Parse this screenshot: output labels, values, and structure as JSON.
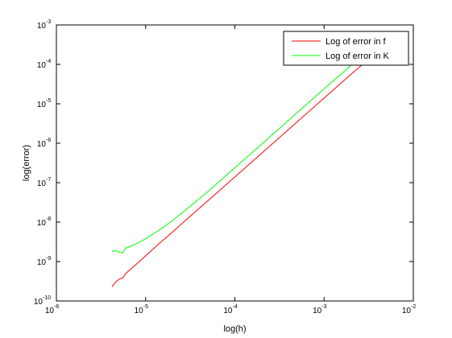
{
  "chart_data": {
    "type": "line",
    "title": "",
    "xlabel": "log(h)",
    "ylabel": "log(error)",
    "xscale": "log",
    "yscale": "log",
    "xlim": [
      1e-06,
      0.01
    ],
    "ylim": [
      1e-10,
      0.001
    ],
    "grid": false,
    "legend_position": "top-right",
    "x_ticks": [
      {
        "base": "10",
        "exp": "-6",
        "value": 1e-06
      },
      {
        "base": "10",
        "exp": "-5",
        "value": 1e-05
      },
      {
        "base": "10",
        "exp": "-4",
        "value": 0.0001
      },
      {
        "base": "10",
        "exp": "-3",
        "value": 0.001
      },
      {
        "base": "10",
        "exp": "-2",
        "value": 0.01
      }
    ],
    "y_ticks": [
      {
        "base": "10",
        "exp": "-10",
        "value": 1e-10
      },
      {
        "base": "10",
        "exp": "-9",
        "value": 1e-09
      },
      {
        "base": "10",
        "exp": "-8",
        "value": 1e-08
      },
      {
        "base": "10",
        "exp": "-7",
        "value": 1e-07
      },
      {
        "base": "10",
        "exp": "-6",
        "value": 1e-06
      },
      {
        "base": "10",
        "exp": "-5",
        "value": 1e-05
      },
      {
        "base": "10",
        "exp": "-4",
        "value": 0.0001
      },
      {
        "base": "10",
        "exp": "-3",
        "value": 0.001
      }
    ],
    "series": [
      {
        "name": "Log of error in f",
        "color": "#ff0000",
        "points": [
          [
            4.2e-06,
            2.3e-10
          ],
          [
            4.6e-06,
            3e-10
          ],
          [
            5e-06,
            3.5e-10
          ],
          [
            5.5e-06,
            3.8e-10
          ],
          [
            6e-06,
            5e-10
          ],
          [
            7e-06,
            6.8e-10
          ],
          [
            8.5e-06,
            1e-09
          ],
          [
            1e-05,
            1.4e-09
          ],
          [
            1.5e-05,
            3.2e-09
          ],
          [
            2e-05,
            5.6e-09
          ],
          [
            3e-05,
            1.27e-08
          ],
          [
            5e-05,
            3.5e-08
          ],
          [
            0.0001,
            1.4e-07
          ],
          [
            0.0002,
            5.6e-07
          ],
          [
            0.0005,
            3.5e-06
          ],
          [
            0.001,
            1.4e-05
          ],
          [
            0.002,
            5.6e-05
          ],
          [
            0.0027,
            0.0001
          ]
        ]
      },
      {
        "name": "Log of error in K",
        "color": "#00ff00",
        "points": [
          [
            4.2e-06,
            1.8e-09
          ],
          [
            4.6e-06,
            1.9e-09
          ],
          [
            5e-06,
            1.75e-09
          ],
          [
            5.5e-06,
            1.65e-09
          ],
          [
            6e-06,
            2.2e-09
          ],
          [
            7e-06,
            2.5e-09
          ],
          [
            8.5e-06,
            3.1e-09
          ],
          [
            1e-05,
            3.8e-09
          ],
          [
            1.5e-05,
            6.8e-09
          ],
          [
            2e-05,
            1.1e-08
          ],
          [
            3e-05,
            2.3e-08
          ],
          [
            5e-05,
            6e-08
          ],
          [
            0.0001,
            2.4e-07
          ],
          [
            0.0002,
            9.5e-07
          ],
          [
            0.0005,
            6e-06
          ],
          [
            0.001,
            2.4e-05
          ],
          [
            0.0016,
            6e-05
          ],
          [
            0.002,
            9.5e-05
          ]
        ]
      }
    ]
  }
}
